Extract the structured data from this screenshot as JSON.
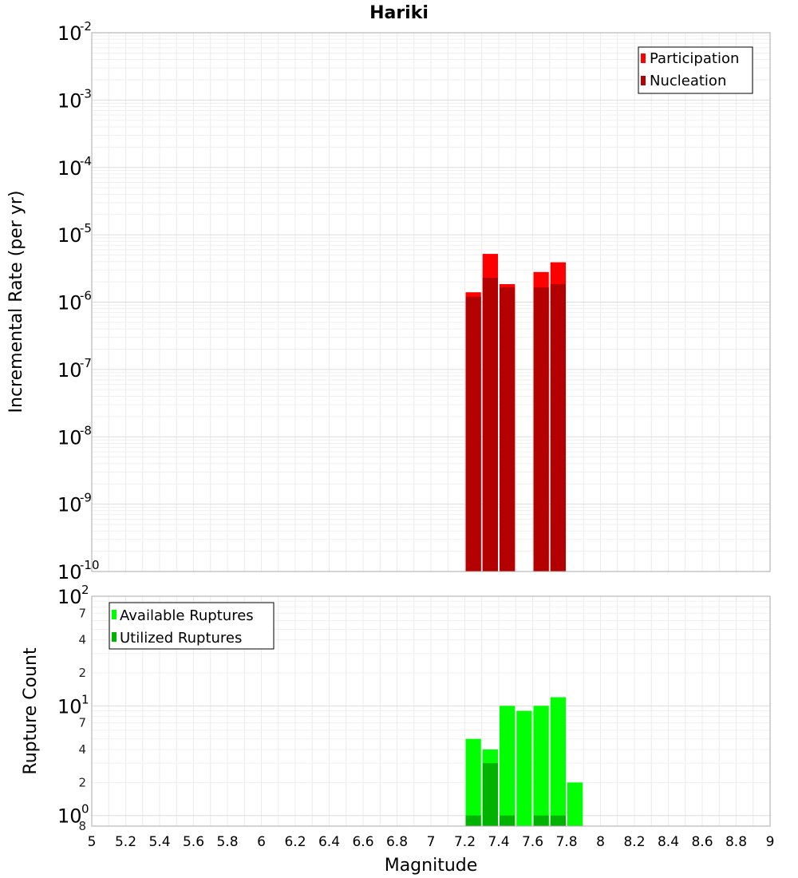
{
  "chart_data": [
    {
      "type": "bar",
      "title": "Hariki",
      "xlabel": "",
      "ylabel": "Incremental Rate (per yr)",
      "yscale": "log",
      "ylim": [
        1e-10,
        0.01
      ],
      "xlim": [
        5,
        9
      ],
      "bin_width": 0.1,
      "y_tick_labels": [
        {
          "base": "10",
          "exp": "-2"
        },
        {
          "base": "10",
          "exp": "-3"
        },
        {
          "base": "10",
          "exp": "-4"
        },
        {
          "base": "10",
          "exp": "-5"
        },
        {
          "base": "10",
          "exp": "-6"
        },
        {
          "base": "10",
          "exp": "-7"
        },
        {
          "base": "10",
          "exp": "-8"
        },
        {
          "base": "10",
          "exp": "-9"
        },
        {
          "base": "10",
          "exp": "-10"
        }
      ],
      "x": [
        7.25,
        7.35,
        7.45,
        7.65,
        7.75
      ],
      "series": [
        {
          "name": "Participation",
          "color": "#ff0000",
          "values": [
            1.4e-06,
            5.2e-06,
            1.85e-06,
            2.8e-06,
            3.9e-06
          ]
        },
        {
          "name": "Nucleation",
          "color": "#b30000",
          "values": [
            1.2e-06,
            2.3e-06,
            1.65e-06,
            1.65e-06,
            1.85e-06
          ]
        }
      ],
      "legend_position": "top-right",
      "grid": true
    },
    {
      "type": "bar",
      "title": "",
      "xlabel": "Magnitude",
      "ylabel": "Rupture Count",
      "yscale": "log",
      "ylim": [
        0.8,
        100
      ],
      "xlim": [
        5,
        9
      ],
      "bin_width": 0.1,
      "y_tick_labels": [
        {
          "base": "10",
          "exp": "2"
        },
        {
          "base": "10",
          "exp": "1"
        },
        {
          "base": "10",
          "exp": "0"
        }
      ],
      "y_minor_labels": [
        "7",
        "4",
        "2",
        "7",
        "4",
        "2",
        "8"
      ],
      "x_tick_labels": [
        "5",
        "5.2",
        "5.4",
        "5.6",
        "5.8",
        "6",
        "6.2",
        "6.4",
        "6.6",
        "6.8",
        "7",
        "7.2",
        "7.4",
        "7.6",
        "7.8",
        "8",
        "8.2",
        "8.4",
        "8.6",
        "8.8",
        "9"
      ],
      "series": [
        {
          "name": "Available Ruptures",
          "color": "#00ff00",
          "x": [
            7.25,
            7.35,
            7.45,
            7.55,
            7.65,
            7.75,
            7.85
          ],
          "values": [
            5,
            4,
            10,
            9,
            10,
            12,
            2
          ]
        },
        {
          "name": "Utilized Ruptures",
          "color": "#00b300",
          "x": [
            7.25,
            7.35,
            7.45,
            7.65,
            7.75
          ],
          "values": [
            1,
            3,
            1,
            1,
            1
          ]
        }
      ],
      "legend_position": "top-left",
      "grid": true
    }
  ]
}
